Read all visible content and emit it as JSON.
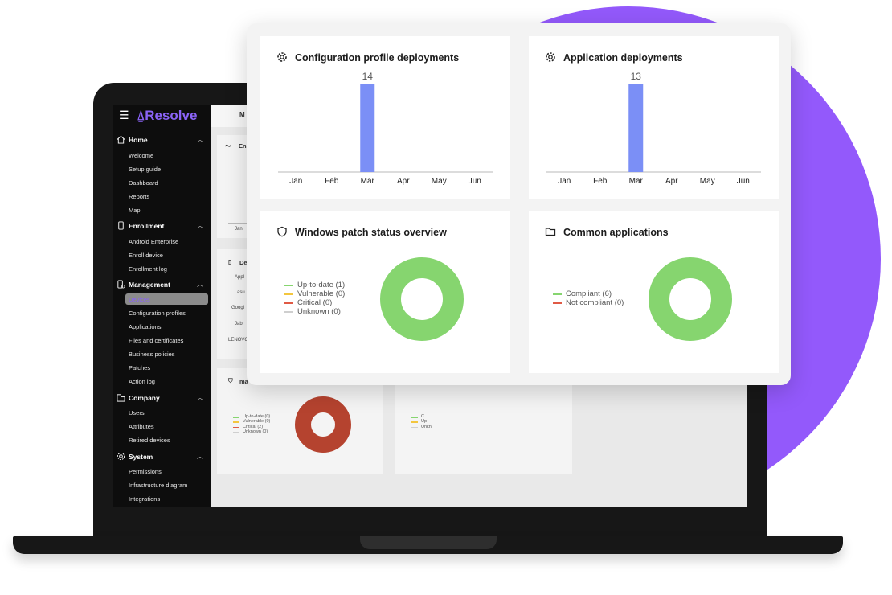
{
  "app": {
    "brand": "Resolve",
    "top_menu_partial": "M"
  },
  "sidebar": {
    "sections": [
      {
        "label": "Home",
        "items": [
          "Welcome",
          "Setup guide",
          "Dashboard",
          "Reports",
          "Map"
        ]
      },
      {
        "label": "Enrollment",
        "items": [
          "Android Enterprise",
          "Enroll device",
          "Enrollment log"
        ]
      },
      {
        "label": "Management",
        "items": [
          "Devices",
          "Configuration profiles",
          "Applications",
          "Files and certificates",
          "Business policies",
          "Patches",
          "Action log"
        ]
      },
      {
        "label": "Company",
        "items": [
          "Users",
          "Attributes",
          "Retired devices"
        ]
      },
      {
        "label": "System",
        "items": [
          "Permissions",
          "Infrastructure diagram",
          "Integrations"
        ]
      }
    ],
    "active_item": "Devices"
  },
  "background": {
    "card1_title_partial": "En",
    "card1_axis_label": "Jan",
    "card2_title_partial": "De",
    "card2_rows": [
      "Appl",
      "asu",
      "Googl",
      "Jabr",
      "LENOVO"
    ],
    "card3_title_partial": "ma",
    "card3_legend": [
      "Up-to-date (0)",
      "Vulnerable (0)",
      "Critical (2)",
      "Unknown (0)"
    ],
    "card4_legend_partial": [
      "C",
      "Up",
      "Unkn"
    ]
  },
  "overlay": {
    "config_card": {
      "title": "Configuration profile deployments",
      "icon": "gear-icon"
    },
    "apps_card": {
      "title": "Application deployments",
      "icon": "gear-icon"
    },
    "patch_card": {
      "title": "Windows patch status overview",
      "icon": "shield-icon",
      "legend": [
        "Up-to-date (1)",
        "Vulnerable (0)",
        "Critical (0)",
        "Unknown (0)"
      ]
    },
    "common_card": {
      "title": "Common applications",
      "icon": "folder-icon",
      "legend": [
        "Compliant (6)",
        "Not compliant (0)"
      ]
    }
  },
  "colors": {
    "accent_purple": "#9359fb",
    "bar_blue": "#7b8ff6",
    "green": "#86d56f",
    "yellow": "#f3c63e",
    "red": "#e05a45",
    "gray": "#cfcfcf",
    "donut_red": "#b5432f"
  },
  "chart_data": [
    {
      "type": "bar",
      "title": "Configuration profile deployments",
      "categories": [
        "Jan",
        "Feb",
        "Mar",
        "Apr",
        "May",
        "Jun"
      ],
      "values": [
        0,
        0,
        14,
        0,
        0,
        0
      ],
      "data_labels": [
        "",
        "",
        "14",
        "",
        "",
        ""
      ]
    },
    {
      "type": "bar",
      "title": "Application deployments",
      "categories": [
        "Jan",
        "Feb",
        "Mar",
        "Apr",
        "May",
        "Jun"
      ],
      "values": [
        0,
        0,
        13,
        0,
        0,
        0
      ],
      "data_labels": [
        "",
        "",
        "13",
        "",
        "",
        ""
      ]
    },
    {
      "type": "pie",
      "title": "Windows patch status overview",
      "categories": [
        "Up-to-date",
        "Vulnerable",
        "Critical",
        "Unknown"
      ],
      "values": [
        1,
        0,
        0,
        0
      ],
      "legend": "left"
    },
    {
      "type": "pie",
      "title": "Common applications",
      "categories": [
        "Compliant",
        "Not compliant"
      ],
      "values": [
        6,
        0
      ],
      "legend": "left"
    }
  ]
}
